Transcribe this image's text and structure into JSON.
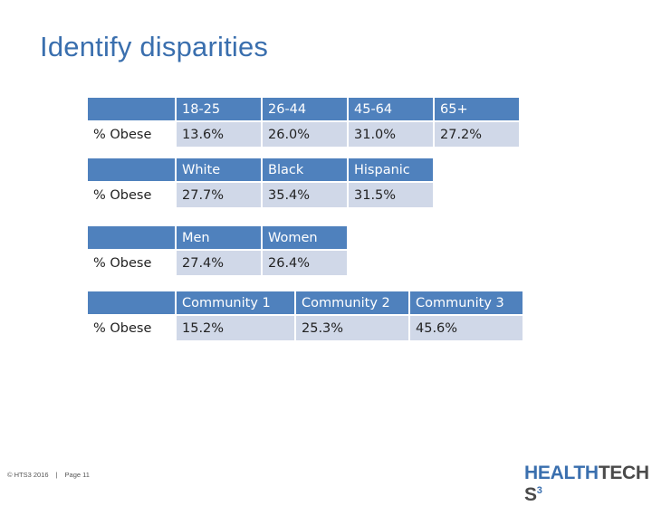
{
  "title": "Identify disparities",
  "tables": [
    {
      "headers": [
        "18-25",
        "26-44",
        "45-64",
        "65+"
      ],
      "row_label": "% Obese",
      "values": [
        "13.6%",
        "26.0%",
        "31.0%",
        "27.2%"
      ]
    },
    {
      "headers": [
        "White",
        "Black",
        "Hispanic"
      ],
      "row_label": "% Obese",
      "values": [
        "27.7%",
        "35.4%",
        "31.5%"
      ]
    },
    {
      "headers": [
        "Men",
        "Women"
      ],
      "row_label": "% Obese",
      "values": [
        "27.4%",
        "26.4%"
      ]
    },
    {
      "headers": [
        "Community 1",
        "Community 2",
        "Community 3"
      ],
      "row_label": "% Obese",
      "values": [
        "15.2%",
        "25.3%",
        "45.6%"
      ]
    }
  ],
  "footer": {
    "copyright": "© HTS3 2016",
    "page": "Page 11"
  },
  "logo": {
    "part1": "HEALTH",
    "part2": "TECH S",
    "sup": "3"
  },
  "colors": {
    "title": "#3a6fae",
    "header_fill": "#4f81bd",
    "value_fill": "#d0d8e8"
  }
}
